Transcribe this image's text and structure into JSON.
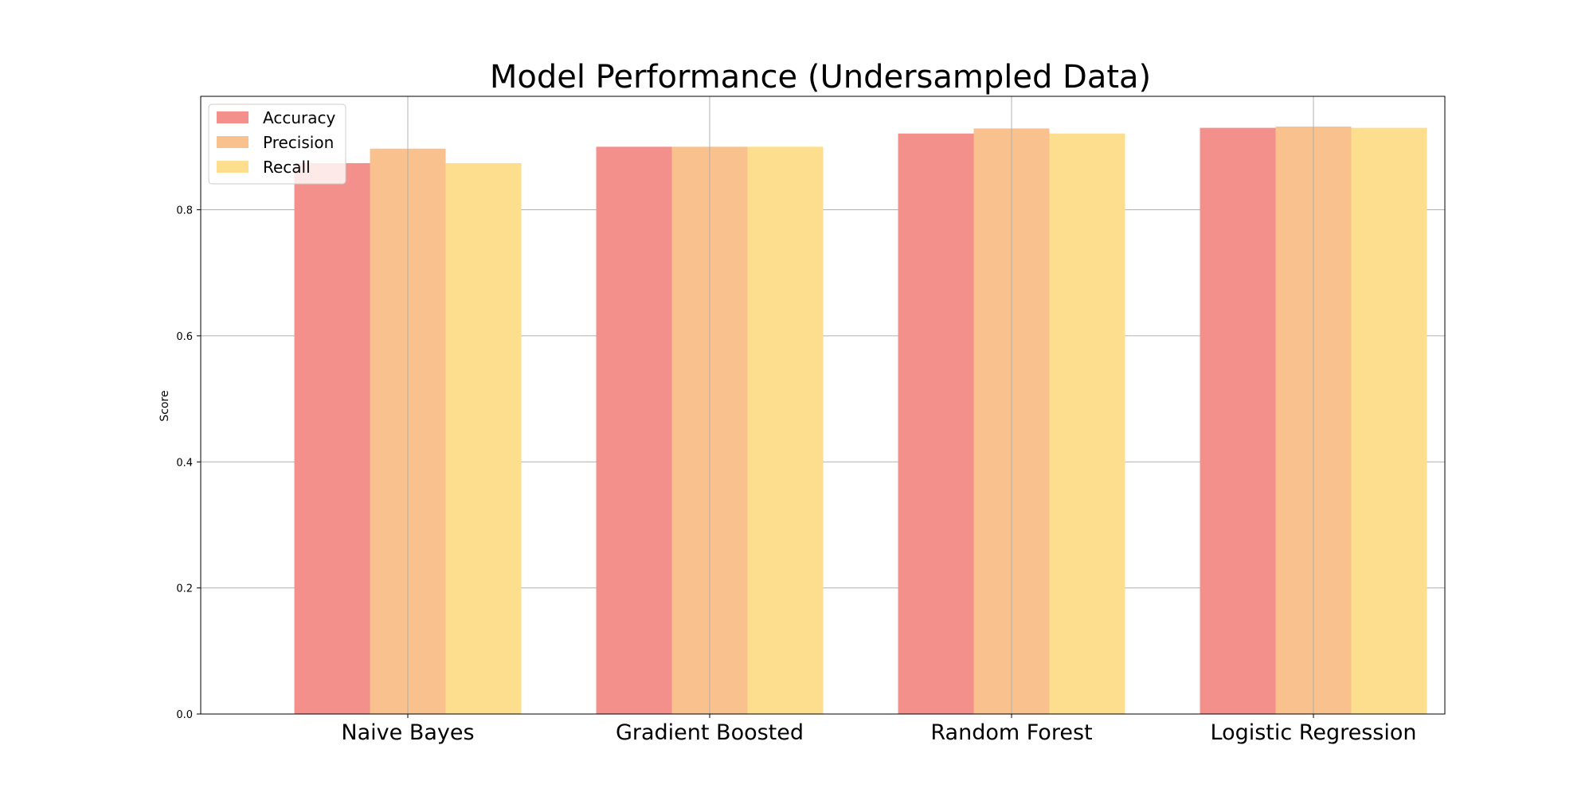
{
  "chart_data": {
    "type": "bar",
    "title": "Model Performance (Undersampled Data)",
    "xlabel": "",
    "ylabel": "Score",
    "categories": [
      "Naive Bayes",
      "Gradient Boosted",
      "Random Forest",
      "Logistic Regression"
    ],
    "series": [
      {
        "name": "Accuracy",
        "values": [
          0.874,
          0.9,
          0.921,
          0.93
        ],
        "color": "#f4908b"
      },
      {
        "name": "Precision",
        "values": [
          0.897,
          0.9,
          0.929,
          0.932
        ],
        "color": "#f9c18d"
      },
      {
        "name": "Recall",
        "values": [
          0.874,
          0.9,
          0.921,
          0.93
        ],
        "color": "#fddd8e"
      }
    ],
    "ylim": [
      0,
      0.98
    ],
    "yticks": [
      "0.0",
      "0.2",
      "0.4",
      "0.6",
      "0.8"
    ],
    "ytick_values": [
      0,
      0.2,
      0.4,
      0.6,
      0.8
    ],
    "grid": true,
    "legend_position": "top-left"
  }
}
